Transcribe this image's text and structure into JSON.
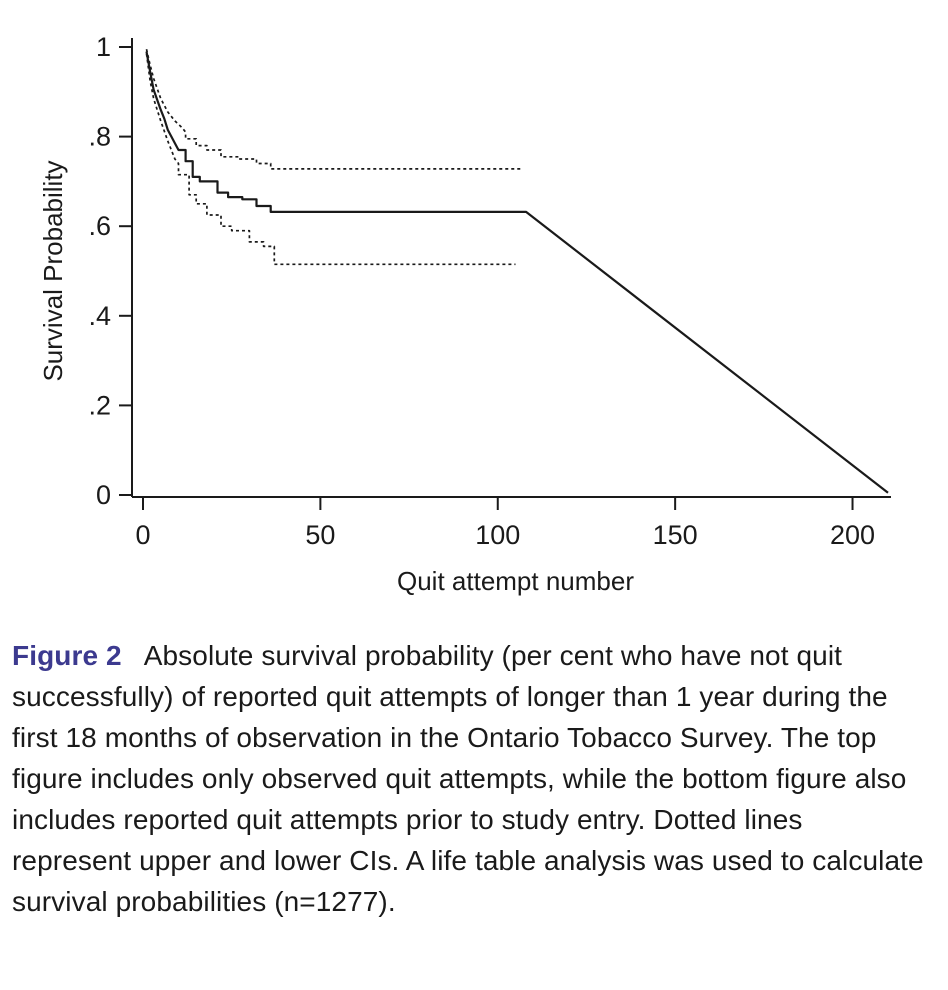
{
  "figure": {
    "caption": {
      "label": "Figure 2",
      "text": "Absolute survival probability (per cent who have not quit successfully) of reported quit attempts of longer than 1 year during the first 18 months of observation in the Ontario Tobacco Survey. The top figure includes only observed quit attempts, while the bottom figure also includes reported quit attempts prior to study entry. Dotted lines represent upper and lower CIs. A life table analysis was used to calculate survival probabilities (n=1277)."
    },
    "colors": {
      "caption_label": "#3c3a8f",
      "line": "#1a1a1a"
    }
  },
  "chart_data": {
    "type": "line",
    "title": "",
    "xlabel": "Quit attempt number",
    "ylabel": "Survival Probability",
    "xlim": [
      0,
      210
    ],
    "ylim": [
      0,
      1
    ],
    "x_ticks": [
      0,
      50,
      100,
      150,
      200
    ],
    "y_ticks": [
      0,
      0.2,
      0.4,
      0.6,
      0.8,
      1
    ],
    "y_tick_labels": [
      "0",
      ".2",
      ".4",
      ".6",
      ".8",
      "1"
    ],
    "grid": false,
    "legend_position": "none",
    "series": [
      {
        "name": "survival-estimate",
        "style": "solid",
        "points": [
          [
            1,
            0.99
          ],
          [
            2,
            0.945
          ],
          [
            3,
            0.905
          ],
          [
            5,
            0.86
          ],
          [
            6,
            0.84
          ],
          [
            7,
            0.815
          ],
          [
            8,
            0.8
          ],
          [
            9,
            0.785
          ],
          [
            10,
            0.77
          ],
          [
            12,
            0.77
          ],
          [
            12,
            0.745
          ],
          [
            14,
            0.745
          ],
          [
            14,
            0.71
          ],
          [
            16,
            0.71
          ],
          [
            16,
            0.7
          ],
          [
            21,
            0.7
          ],
          [
            21,
            0.675
          ],
          [
            24,
            0.675
          ],
          [
            24,
            0.665
          ],
          [
            28,
            0.665
          ],
          [
            28,
            0.66
          ],
          [
            32,
            0.66
          ],
          [
            32,
            0.645
          ],
          [
            36,
            0.645
          ],
          [
            36,
            0.632
          ],
          [
            38,
            0.632
          ],
          [
            108,
            0.632
          ],
          [
            210,
            0.005
          ]
        ]
      },
      {
        "name": "upper-ci",
        "style": "dashed",
        "points": [
          [
            1,
            0.995
          ],
          [
            2,
            0.96
          ],
          [
            3,
            0.93
          ],
          [
            5,
            0.885
          ],
          [
            7,
            0.855
          ],
          [
            9,
            0.835
          ],
          [
            11,
            0.82
          ],
          [
            12,
            0.81
          ],
          [
            12,
            0.795
          ],
          [
            15,
            0.795
          ],
          [
            15,
            0.78
          ],
          [
            18,
            0.78
          ],
          [
            18,
            0.77
          ],
          [
            22,
            0.77
          ],
          [
            22,
            0.755
          ],
          [
            27,
            0.755
          ],
          [
            27,
            0.75
          ],
          [
            32,
            0.75
          ],
          [
            32,
            0.74
          ],
          [
            36,
            0.74
          ],
          [
            36,
            0.728
          ],
          [
            107,
            0.728
          ]
        ]
      },
      {
        "name": "lower-ci",
        "style": "dashed",
        "points": [
          [
            1,
            0.985
          ],
          [
            2,
            0.925
          ],
          [
            3,
            0.885
          ],
          [
            5,
            0.835
          ],
          [
            7,
            0.79
          ],
          [
            9,
            0.75
          ],
          [
            10,
            0.74
          ],
          [
            10,
            0.715
          ],
          [
            13,
            0.715
          ],
          [
            13,
            0.67
          ],
          [
            15,
            0.67
          ],
          [
            15,
            0.65
          ],
          [
            18,
            0.65
          ],
          [
            18,
            0.625
          ],
          [
            22,
            0.625
          ],
          [
            22,
            0.6
          ],
          [
            25,
            0.6
          ],
          [
            25,
            0.59
          ],
          [
            30,
            0.59
          ],
          [
            30,
            0.565
          ],
          [
            34,
            0.565
          ],
          [
            34,
            0.555
          ],
          [
            37,
            0.555
          ],
          [
            37,
            0.515
          ],
          [
            39,
            0.515
          ],
          [
            105,
            0.515
          ]
        ]
      }
    ]
  }
}
